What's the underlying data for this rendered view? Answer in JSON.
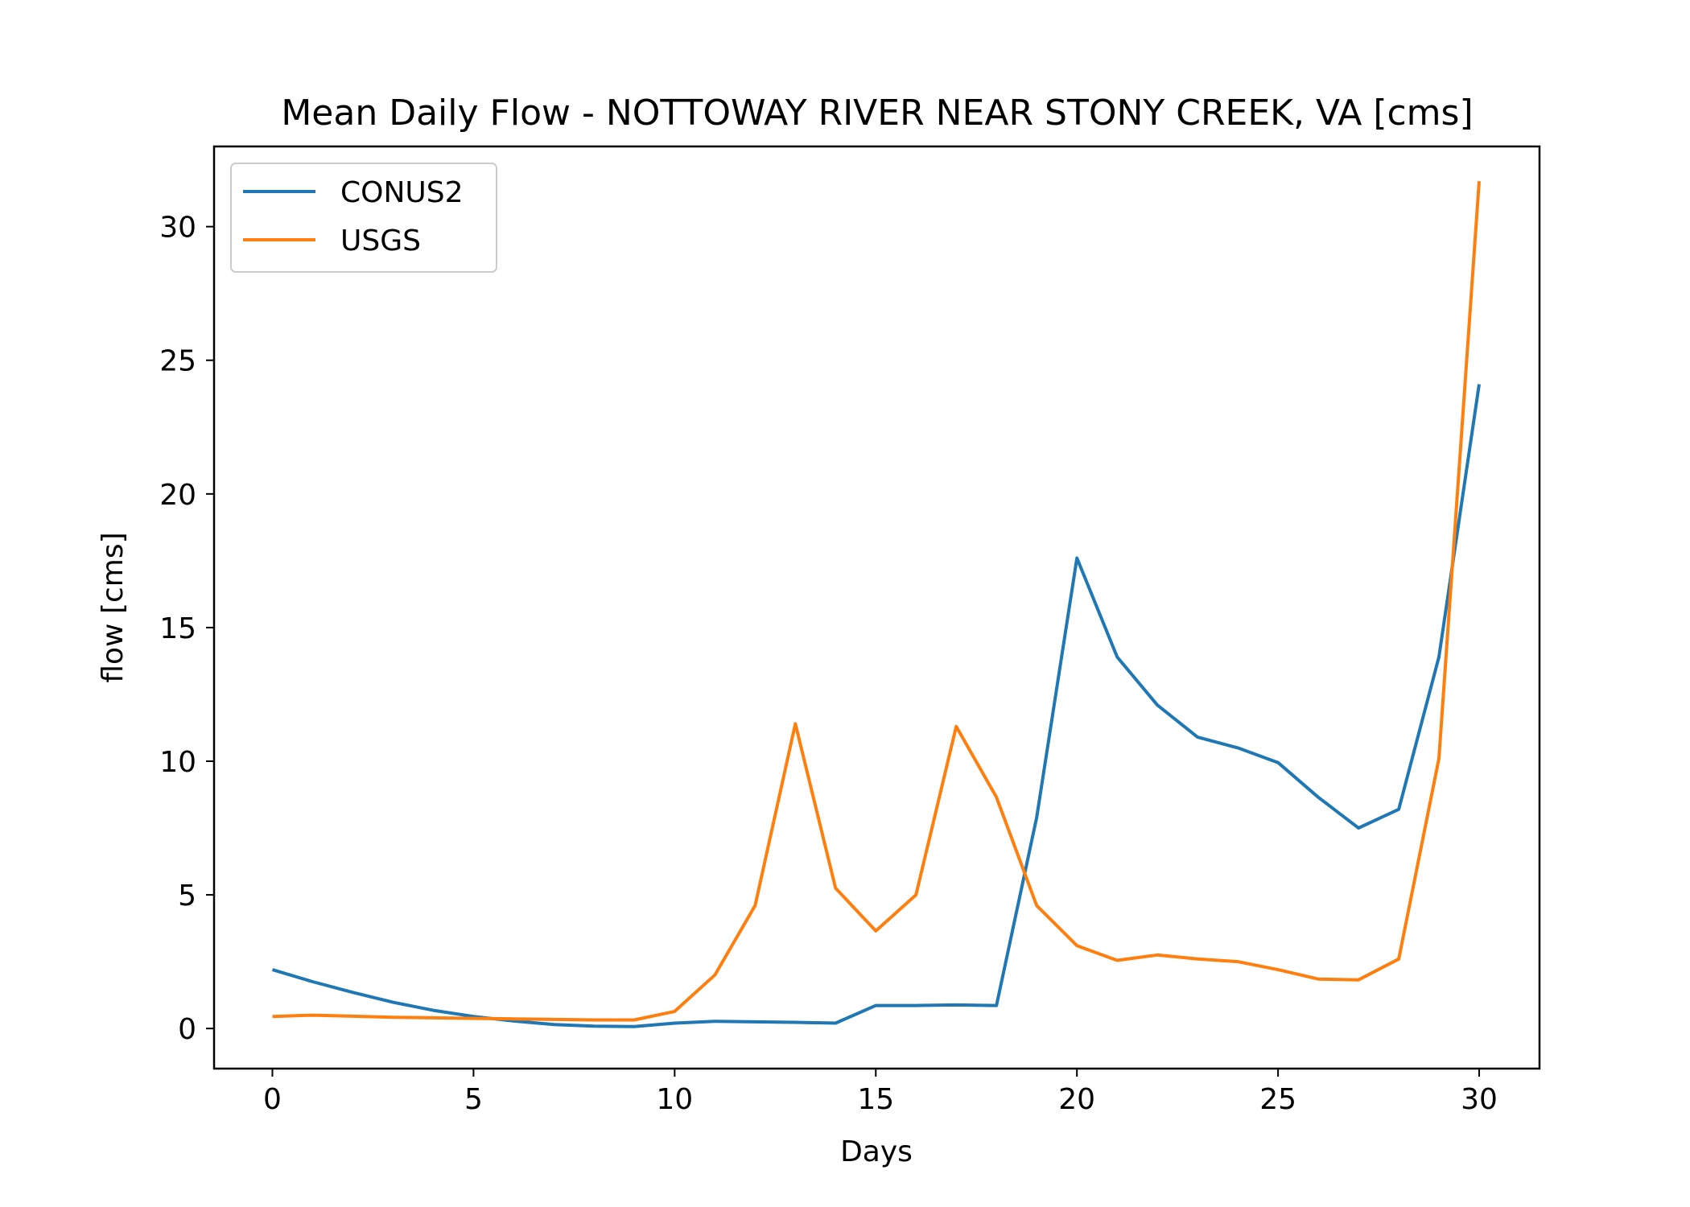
{
  "chart_data": {
    "type": "line",
    "title": "Mean Daily Flow - NOTTOWAY RIVER NEAR STONY CREEK, VA [cms]",
    "xlabel": "Days",
    "ylabel": "flow [cms]",
    "xlim": [
      -1.45,
      31.5
    ],
    "ylim": [
      -1.5,
      33.0
    ],
    "xticks": [
      0,
      5,
      10,
      15,
      20,
      25,
      30
    ],
    "yticks": [
      0,
      5,
      10,
      15,
      20,
      25,
      30
    ],
    "grid": false,
    "legend_position": "upper-left",
    "x": [
      0,
      1,
      2,
      3,
      4,
      5,
      6,
      7,
      8,
      9,
      10,
      11,
      12,
      13,
      14,
      15,
      16,
      17,
      18,
      19,
      20,
      21,
      22,
      23,
      24,
      25,
      26,
      27,
      28,
      29,
      30
    ],
    "series": [
      {
        "name": "CONUS2",
        "color": "#1f77b4",
        "values": [
          2.2,
          1.75,
          1.35,
          0.98,
          0.68,
          0.45,
          0.28,
          0.15,
          0.09,
          0.07,
          0.2,
          0.27,
          0.25,
          0.23,
          0.2,
          0.86,
          0.86,
          0.88,
          0.86,
          7.9,
          17.6,
          13.9,
          12.1,
          10.9,
          10.5,
          9.95,
          8.65,
          7.5,
          8.2,
          13.9,
          24.1
        ]
      },
      {
        "name": "USGS",
        "color": "#ff7f0e",
        "values": [
          0.45,
          0.5,
          0.46,
          0.42,
          0.4,
          0.38,
          0.36,
          0.34,
          0.32,
          0.32,
          0.64,
          2.0,
          4.6,
          11.4,
          5.25,
          3.65,
          5.0,
          11.3,
          8.65,
          4.6,
          3.1,
          2.55,
          2.75,
          2.6,
          2.5,
          2.2,
          1.85,
          1.82,
          2.6,
          10.1,
          31.7
        ]
      }
    ]
  }
}
